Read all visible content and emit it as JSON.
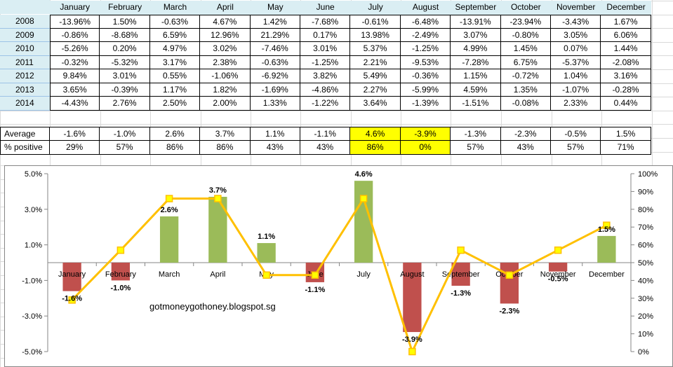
{
  "months": [
    "January",
    "February",
    "March",
    "April",
    "May",
    "June",
    "July",
    "August",
    "September",
    "October",
    "November",
    "December"
  ],
  "years": [
    {
      "year": "2008",
      "values": [
        "-13.96%",
        "1.50%",
        "-0.63%",
        "4.67%",
        "1.42%",
        "-7.68%",
        "-0.61%",
        "-6.48%",
        "-13.91%",
        "-23.94%",
        "-3.43%",
        "1.67%"
      ]
    },
    {
      "year": "2009",
      "values": [
        "-0.86%",
        "-8.68%",
        "6.59%",
        "12.96%",
        "21.29%",
        "0.17%",
        "13.98%",
        "-2.49%",
        "3.07%",
        "-0.80%",
        "3.05%",
        "6.06%"
      ]
    },
    {
      "year": "2010",
      "values": [
        "-5.26%",
        "0.20%",
        "4.97%",
        "3.02%",
        "-7.46%",
        "3.01%",
        "5.37%",
        "-1.25%",
        "4.99%",
        "1.45%",
        "0.07%",
        "1.44%"
      ]
    },
    {
      "year": "2011",
      "values": [
        "-0.32%",
        "-5.32%",
        "3.17%",
        "2.38%",
        "-0.63%",
        "-1.25%",
        "2.21%",
        "-9.53%",
        "-7.28%",
        "6.75%",
        "-5.37%",
        "-2.08%"
      ]
    },
    {
      "year": "2012",
      "values": [
        "9.84%",
        "3.01%",
        "0.55%",
        "-1.06%",
        "-6.92%",
        "3.82%",
        "5.49%",
        "-0.36%",
        "1.15%",
        "-0.72%",
        "1.04%",
        "3.16%"
      ]
    },
    {
      "year": "2013",
      "values": [
        "3.65%",
        "-0.39%",
        "1.17%",
        "1.82%",
        "-1.69%",
        "-4.86%",
        "2.27%",
        "-5.99%",
        "4.59%",
        "1.35%",
        "-1.07%",
        "-0.28%"
      ]
    },
    {
      "year": "2014",
      "values": [
        "-4.43%",
        "2.76%",
        "2.50%",
        "2.00%",
        "1.33%",
        "-1.22%",
        "3.64%",
        "-1.39%",
        "-1.51%",
        "-0.08%",
        "2.33%",
        "0.44%"
      ]
    }
  ],
  "summary": {
    "average_label": "Average",
    "average_values": [
      "-1.6%",
      "-1.0%",
      "2.6%",
      "3.7%",
      "1.1%",
      "-1.1%",
      "4.6%",
      "-3.9%",
      "-1.3%",
      "-2.3%",
      "-0.5%",
      "1.5%"
    ],
    "positive_label": "% positive",
    "positive_values": [
      "29%",
      "57%",
      "86%",
      "86%",
      "43%",
      "43%",
      "86%",
      "0%",
      "57%",
      "43%",
      "57%",
      "71%"
    ],
    "highlighted_months": [
      "July",
      "August"
    ],
    "highlight_color": "#ffff00"
  },
  "chart_data": {
    "type": "bar",
    "watermark": "gotmoneygothoney.blogspot.sg",
    "categories": [
      "January",
      "February",
      "March",
      "April",
      "May",
      "June",
      "July",
      "August",
      "September",
      "October",
      "November",
      "December"
    ],
    "series": [
      {
        "name": "Average",
        "type": "bar",
        "axis": "left",
        "values": [
          -1.6,
          -1.0,
          2.6,
          3.7,
          1.1,
          -1.1,
          4.6,
          -3.9,
          -1.3,
          -2.3,
          -0.5,
          1.5
        ],
        "labels": [
          "-1.6%",
          "-1.0%",
          "2.6%",
          "3.7%",
          "1.1%",
          "-1.1%",
          "4.6%",
          "-3.9%",
          "-1.3%",
          "-2.3%",
          "-0.5%",
          "1.5%"
        ],
        "positive_color": "#9bbb59",
        "negative_color": "#c0504d"
      },
      {
        "name": "% positive",
        "type": "line",
        "axis": "right",
        "values": [
          29,
          57,
          86,
          86,
          43,
          43,
          86,
          0,
          57,
          43,
          57,
          71
        ],
        "color": "#ffc000",
        "marker_color": "#ffff00"
      }
    ],
    "left_axis": {
      "ylim": [
        -5,
        5
      ],
      "ticks": [
        5,
        3,
        1,
        -1,
        -3,
        -5
      ],
      "tick_labels": [
        "5.0%",
        "3.0%",
        "1.0%",
        "-1.0%",
        "-3.0%",
        "-5.0%"
      ]
    },
    "right_axis": {
      "ylim": [
        0,
        100
      ],
      "ticks": [
        100,
        90,
        80,
        70,
        60,
        50,
        40,
        30,
        20,
        10,
        0
      ],
      "tick_labels": [
        "100%",
        "90%",
        "80%",
        "70%",
        "60%",
        "50%",
        "40%",
        "30%",
        "20%",
        "10%",
        "0%"
      ]
    },
    "grid": false
  }
}
